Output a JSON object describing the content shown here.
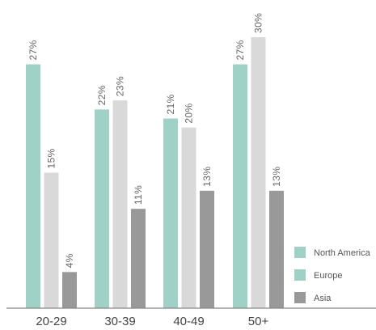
{
  "chart_data": {
    "type": "bar",
    "categories": [
      "20-29",
      "30-39",
      "40-49",
      "50+"
    ],
    "series": [
      {
        "name": "North America",
        "values": [
          27,
          22,
          21,
          27
        ],
        "labels": [
          "27%",
          "22%",
          "21%",
          "27%"
        ],
        "color": "#9fd1c6"
      },
      {
        "name": "Europe",
        "values": [
          15,
          23,
          20,
          30
        ],
        "labels": [
          "15%",
          "23%",
          "20%",
          "30%"
        ],
        "color": "#d9d9d9"
      },
      {
        "name": "Asia",
        "values": [
          4,
          11,
          13,
          13
        ],
        "labels": [
          "4%",
          "11%",
          "13%",
          "13%"
        ],
        "color": "#999999"
      }
    ],
    "legend": {
      "placement": "bottom-right",
      "items": [
        {
          "label": "North America",
          "color": "#9fd1c6"
        },
        {
          "label": "Europe",
          "color": "#9fd1c6"
        },
        {
          "label": "Asia",
          "color": "#999999"
        }
      ]
    },
    "ylim": [
      0,
      30
    ],
    "grid": false,
    "axis_color": "#888888"
  }
}
